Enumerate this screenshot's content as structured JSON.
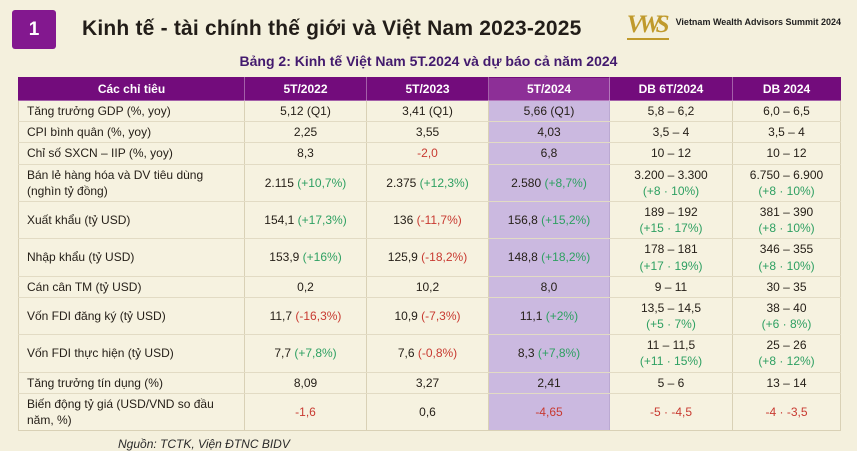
{
  "header": {
    "badge": "1",
    "title": "Kinh tế - tài chính thế giới và Việt Nam 2023-2025",
    "logo": {
      "monogram": "VWS",
      "text": "Vietnam Wealth Advisors Summit 2024"
    }
  },
  "subtitle": "Bảng 2: Kinh tế Việt Nam 5T.2024 và dự báo cả năm 2024",
  "table": {
    "columns": [
      "Các chỉ tiêu",
      "5T/2022",
      "5T/2023",
      "5T/2024",
      "DB 6T/2024",
      "DB 2024"
    ],
    "highlight_cell_index": 2,
    "rows": [
      {
        "label": "Tăng trưởng GDP (%, yoy)",
        "cells": [
          [
            {
              "t": "5,12 (Q1)"
            }
          ],
          [
            {
              "t": "3,41 (Q1)"
            }
          ],
          [
            {
              "t": "5,66 (Q1)"
            }
          ],
          [
            {
              "t": "5,8 – 6,2"
            }
          ],
          [
            {
              "t": "6,0 – 6,5"
            }
          ]
        ]
      },
      {
        "label": "CPI bình quân (%, yoy)",
        "cells": [
          [
            {
              "t": "2,25"
            }
          ],
          [
            {
              "t": "3,55"
            }
          ],
          [
            {
              "t": "4,03"
            }
          ],
          [
            {
              "t": "3,5 – 4"
            }
          ],
          [
            {
              "t": "3,5 – 4"
            }
          ]
        ]
      },
      {
        "label": "Chỉ số SXCN – IIP (%, yoy)",
        "cells": [
          [
            {
              "t": "8,3"
            }
          ],
          [
            {
              "t": "-2,0",
              "c": "red"
            }
          ],
          [
            {
              "t": "6,8"
            }
          ],
          [
            {
              "t": "10 – 12"
            }
          ],
          [
            {
              "t": "10 – 12"
            }
          ]
        ]
      },
      {
        "label": "Bán lẻ hàng hóa và DV tiêu dùng (nghìn tỷ đồng)",
        "cells": [
          [
            {
              "t": "2.115 "
            },
            {
              "t": "(+10,7%)",
              "c": "green"
            }
          ],
          [
            {
              "t": "2.375 "
            },
            {
              "t": "(+12,3%)",
              "c": "green"
            }
          ],
          [
            {
              "t": "2.580 "
            },
            {
              "t": "(+8,7%)",
              "c": "green"
            }
          ],
          [
            {
              "t": "3.200 – 3.300"
            },
            {
              "t": "(+8 · 10%)",
              "c": "green",
              "br": true
            }
          ],
          [
            {
              "t": "6.750 – 6.900"
            },
            {
              "t": "(+8 · 10%)",
              "c": "green",
              "br": true
            }
          ]
        ]
      },
      {
        "label": "Xuất khẩu (tỷ USD)",
        "cells": [
          [
            {
              "t": "154,1 "
            },
            {
              "t": "(+17,3%)",
              "c": "green"
            }
          ],
          [
            {
              "t": "136 "
            },
            {
              "t": "(-11,7%)",
              "c": "red"
            }
          ],
          [
            {
              "t": "156,8 "
            },
            {
              "t": "(+15,2%)",
              "c": "green"
            }
          ],
          [
            {
              "t": "189 – 192"
            },
            {
              "t": "(+15 · 17%)",
              "c": "green",
              "br": true
            }
          ],
          [
            {
              "t": "381 – 390"
            },
            {
              "t": "(+8 · 10%)",
              "c": "green",
              "br": true
            }
          ]
        ]
      },
      {
        "label": "Nhập khẩu (tỷ USD)",
        "cells": [
          [
            {
              "t": "153,9 "
            },
            {
              "t": "(+16%)",
              "c": "green"
            }
          ],
          [
            {
              "t": "125,9 "
            },
            {
              "t": "(-18,2%)",
              "c": "red"
            }
          ],
          [
            {
              "t": "148,8 "
            },
            {
              "t": "(+18,2%)",
              "c": "green"
            }
          ],
          [
            {
              "t": "178 – 181"
            },
            {
              "t": "(+17 · 19%)",
              "c": "green",
              "br": true
            }
          ],
          [
            {
              "t": "346 – 355"
            },
            {
              "t": "(+8 · 10%)",
              "c": "green",
              "br": true
            }
          ]
        ]
      },
      {
        "label": "Cán cân TM (tỷ USD)",
        "cells": [
          [
            {
              "t": "0,2"
            }
          ],
          [
            {
              "t": "10,2"
            }
          ],
          [
            {
              "t": "8,0"
            }
          ],
          [
            {
              "t": "9 – 11"
            }
          ],
          [
            {
              "t": "30 – 35"
            }
          ]
        ]
      },
      {
        "label": "Vốn FDI đăng ký (tỷ USD)",
        "cells": [
          [
            {
              "t": "11,7 "
            },
            {
              "t": "(-16,3%)",
              "c": "red"
            }
          ],
          [
            {
              "t": "10,9 "
            },
            {
              "t": "(-7,3%)",
              "c": "red"
            }
          ],
          [
            {
              "t": "11,1 "
            },
            {
              "t": "(+2%)",
              "c": "green"
            }
          ],
          [
            {
              "t": "13,5 – 14,5"
            },
            {
              "t": "(+5 · 7%)",
              "c": "green",
              "br": true
            }
          ],
          [
            {
              "t": "38 – 40"
            },
            {
              "t": "(+6 · 8%)",
              "c": "green",
              "br": true
            }
          ]
        ]
      },
      {
        "label": "Vốn FDI thực hiện (tỷ USD)",
        "cells": [
          [
            {
              "t": "7,7 "
            },
            {
              "t": "(+7,8%)",
              "c": "green"
            }
          ],
          [
            {
              "t": "7,6 "
            },
            {
              "t": "(-0,8%)",
              "c": "red"
            }
          ],
          [
            {
              "t": "8,3 "
            },
            {
              "t": "(+7,8%)",
              "c": "green"
            }
          ],
          [
            {
              "t": "11 – 11,5"
            },
            {
              "t": "(+11 · 15%)",
              "c": "green",
              "br": true
            }
          ],
          [
            {
              "t": "25 – 26"
            },
            {
              "t": "(+8 · 12%)",
              "c": "green",
              "br": true
            }
          ]
        ]
      },
      {
        "label": "Tăng trưởng tín dụng (%)",
        "cells": [
          [
            {
              "t": "8,09"
            }
          ],
          [
            {
              "t": "3,27"
            }
          ],
          [
            {
              "t": "2,41"
            }
          ],
          [
            {
              "t": "5 – 6"
            }
          ],
          [
            {
              "t": "13 – 14"
            }
          ]
        ]
      },
      {
        "label": "Biến động tỷ giá (USD/VND so đầu năm, %)",
        "cells": [
          [
            {
              "t": "-1,6",
              "c": "red"
            }
          ],
          [
            {
              "t": "0,6"
            }
          ],
          [
            {
              "t": "-4,65",
              "c": "red"
            }
          ],
          [
            {
              "t": "-5 · -4,5",
              "c": "red"
            }
          ],
          [
            {
              "t": "-4 · -3,5",
              "c": "red"
            }
          ]
        ]
      }
    ]
  },
  "footer": {
    "source": "Nguồn: TCTK, Viện ĐTNC BIDV"
  },
  "colors": {
    "page_bg": "#f4f0dd",
    "header_purple": "#730c7c",
    "header_purple_highlight": "#8d2f97",
    "badge_purple": "#83188f",
    "highlight_column_bg": "#cbb9e0",
    "subtitle_purple": "#431a6e",
    "positive_green": "#2ea062",
    "negative_red": "#c83a31",
    "logo_gold": "#c09a2c"
  }
}
